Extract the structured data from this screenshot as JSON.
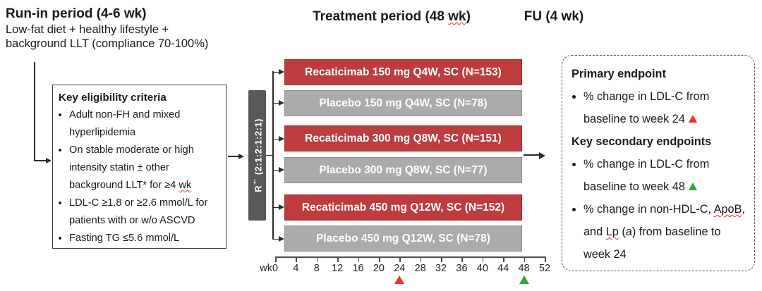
{
  "runin": {
    "title": "Run-in period (4-6 wk)",
    "line1": "Low-fat diet + healthy lifestyle +",
    "line2": "background LLT (compliance 70-100%)"
  },
  "treatment": {
    "title_pre": "Treatment period (48 ",
    "title_wavy": "wk",
    "title_post": ")"
  },
  "fu": {
    "title": "FU (4 wk)"
  },
  "eligibility": {
    "title": "Key eligibility criteria",
    "item1": "Adult non-FH and mixed hyperlipidemia",
    "item2_pre": "On stable moderate or high intensity statin ± other background LLT* for ≥4 ",
    "item2_wavy": "wk",
    "item3": "LDL-C ≥1.8 or ≥2.6 mmol/L for patients with or w/o ASCVD",
    "item4": "Fasting TG ≤5.6 mmol/L"
  },
  "randomization": {
    "r": "R",
    "sup": "†",
    "ratio": " (2:1:2:1:2:1)"
  },
  "arms": [
    {
      "label": "Recaticimab 150 mg Q4W, SC (N=153)",
      "type": "recaticimab"
    },
    {
      "label": "Placebo 150 mg Q4W, SC (N=78)",
      "type": "placebo"
    },
    {
      "label": "Recaticimab 300 mg Q8W, SC (N=151)",
      "type": "recaticimab"
    },
    {
      "label": "Placebo 300 mg Q8W, SC (N=77)",
      "type": "placebo"
    },
    {
      "label": "Recaticimab 450 mg Q12W, SC (N=152)",
      "type": "recaticimab"
    },
    {
      "label": "Placebo 450 mg Q12W, SC (N=78)",
      "type": "placebo"
    }
  ],
  "axis": {
    "unit": "wk",
    "ticks": [
      "0",
      "4",
      "8",
      "12",
      "16",
      "20",
      "24",
      "28",
      "32",
      "36",
      "40",
      "44",
      "48",
      "52"
    ],
    "markers": [
      {
        "week": 24,
        "color": "red"
      },
      {
        "week": 48,
        "color": "green"
      }
    ]
  },
  "endpoints": {
    "primary_title": "Primary endpoint",
    "primary_item_text": "% change in LDL-C from baseline to week 24",
    "primary_item_marker": "red",
    "secondary_title": "Key secondary endpoints",
    "secondary_item1_text": "% change in LDL-C from baseline to week 48",
    "secondary_item1_marker": "green",
    "secondary_item2_s1": "% change in non-HDL-C, ",
    "secondary_item2_w1": "ApoB",
    "secondary_item2_s2": ", and ",
    "secondary_item2_w2": "Lp",
    "secondary_item2_s3": " (a) from baseline to week 24"
  },
  "colors": {
    "arm_red": "#BE3B3E",
    "arm_gray": "#ABABAB",
    "r_bar": "#595959",
    "marker_red": "#EE3124",
    "marker_green": "#2FA836",
    "line": "#2B2B2B",
    "squiggle": "#E2342B"
  }
}
